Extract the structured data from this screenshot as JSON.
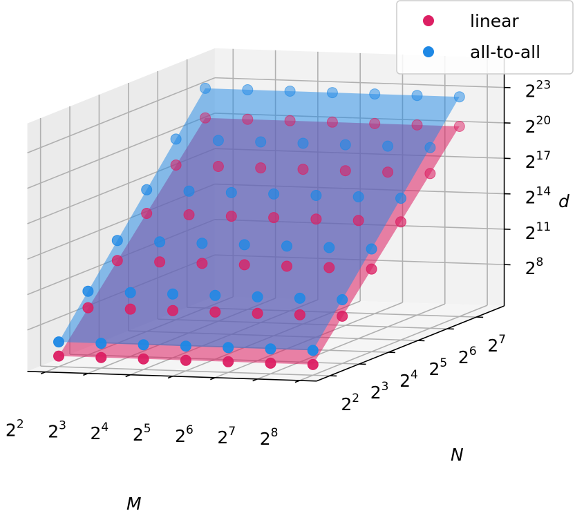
{
  "chart_data": {
    "type": "scatter",
    "subtype": "3d-scatter-with-planes",
    "axes": {
      "x": {
        "label": "M",
        "scale": "log2",
        "ticks": [
          2,
          3,
          4,
          5,
          6,
          7,
          8
        ],
        "range": [
          2,
          8
        ]
      },
      "y": {
        "label": "N",
        "scale": "log2",
        "ticks": [
          2,
          3,
          4,
          5,
          6,
          7
        ],
        "range": [
          2,
          7
        ]
      },
      "z": {
        "label": "d",
        "scale": "log2",
        "ticks": [
          8,
          11,
          14,
          17,
          20,
          23
        ]
      }
    },
    "tick_base": "2",
    "grid": true,
    "legend": {
      "position": "top-right"
    },
    "series": [
      {
        "name": "linear",
        "color": "#dc1f63",
        "points_log2": [
          [
            2,
            2,
            5.4
          ],
          [
            3,
            2,
            5.4
          ],
          [
            4,
            2,
            5.4
          ],
          [
            5,
            2,
            5.4
          ],
          [
            6,
            2,
            5.4
          ],
          [
            7,
            2,
            5.4
          ],
          [
            8,
            2,
            5.4
          ],
          [
            2,
            3,
            8.5
          ],
          [
            3,
            3,
            8.5
          ],
          [
            4,
            3,
            8.5
          ],
          [
            5,
            3,
            8.5
          ],
          [
            6,
            3,
            8.5
          ],
          [
            7,
            3,
            8.5
          ],
          [
            8,
            3,
            8.5
          ],
          [
            2,
            4,
            11.5
          ],
          [
            3,
            4,
            11.5
          ],
          [
            4,
            4,
            11.5
          ],
          [
            5,
            4,
            11.5
          ],
          [
            6,
            4,
            11.5
          ],
          [
            7,
            4,
            11.5
          ],
          [
            8,
            4,
            11.5
          ],
          [
            2,
            5,
            14.5
          ],
          [
            3,
            5,
            14.5
          ],
          [
            4,
            5,
            14.5
          ],
          [
            5,
            5,
            14.5
          ],
          [
            6,
            5,
            14.5
          ],
          [
            7,
            5,
            14.5
          ],
          [
            8,
            5,
            14.5
          ],
          [
            2,
            6,
            17.6
          ],
          [
            3,
            6,
            17.6
          ],
          [
            4,
            6,
            17.6
          ],
          [
            5,
            6,
            17.6
          ],
          [
            6,
            6,
            17.6
          ],
          [
            7,
            6,
            17.6
          ],
          [
            8,
            6,
            17.6
          ],
          [
            2,
            7,
            20.6
          ],
          [
            3,
            7,
            20.6
          ],
          [
            4,
            7,
            20.6
          ],
          [
            5,
            7,
            20.6
          ],
          [
            6,
            7,
            20.6
          ],
          [
            7,
            7,
            20.6
          ],
          [
            8,
            7,
            20.6
          ]
        ]
      },
      {
        "name": "all-to-all",
        "color": "#1e88e5",
        "points_log2": [
          [
            2,
            2,
            6.6
          ],
          [
            3,
            2,
            6.6
          ],
          [
            4,
            2,
            6.6
          ],
          [
            5,
            2,
            6.6
          ],
          [
            6,
            2,
            6.6
          ],
          [
            7,
            2,
            6.6
          ],
          [
            8,
            2,
            6.6
          ],
          [
            2,
            3,
            9.9
          ],
          [
            3,
            3,
            9.9
          ],
          [
            4,
            3,
            9.9
          ],
          [
            5,
            3,
            9.9
          ],
          [
            6,
            3,
            9.9
          ],
          [
            7,
            3,
            9.9
          ],
          [
            8,
            3,
            9.9
          ],
          [
            2,
            4,
            13.2
          ],
          [
            3,
            4,
            13.2
          ],
          [
            4,
            4,
            13.2
          ],
          [
            5,
            4,
            13.2
          ],
          [
            6,
            4,
            13.2
          ],
          [
            7,
            4,
            13.2
          ],
          [
            8,
            4,
            13.2
          ],
          [
            2,
            5,
            16.5
          ],
          [
            3,
            5,
            16.5
          ],
          [
            4,
            5,
            16.5
          ],
          [
            5,
            5,
            16.5
          ],
          [
            6,
            5,
            16.5
          ],
          [
            7,
            5,
            16.5
          ],
          [
            8,
            5,
            16.5
          ],
          [
            2,
            6,
            19.8
          ],
          [
            3,
            6,
            19.8
          ],
          [
            4,
            6,
            19.8
          ],
          [
            5,
            6,
            19.8
          ],
          [
            6,
            6,
            19.8
          ],
          [
            7,
            6,
            19.8
          ],
          [
            8,
            6,
            19.8
          ],
          [
            2,
            7,
            23.1
          ],
          [
            3,
            7,
            23.1
          ],
          [
            4,
            7,
            23.1
          ],
          [
            5,
            7,
            23.1
          ],
          [
            6,
            7,
            23.1
          ],
          [
            7,
            7,
            23.1
          ],
          [
            8,
            7,
            23.1
          ]
        ]
      }
    ]
  }
}
